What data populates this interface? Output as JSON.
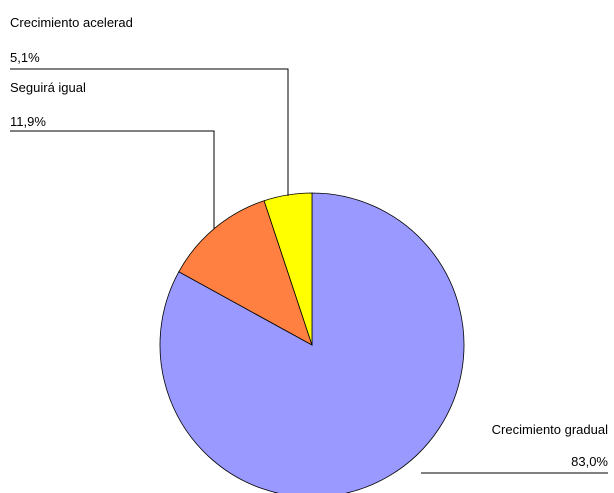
{
  "chart_data": {
    "type": "pie",
    "title": "",
    "slices": [
      {
        "label": "Crecimiento gradual",
        "value": 83.0,
        "value_label": "83,0%",
        "color": "#9999ff"
      },
      {
        "label": "Seguirá igual",
        "value": 11.9,
        "value_label": "11,9%",
        "color": "#ff8040"
      },
      {
        "label": "Crecimiento acelerad",
        "value": 5.1,
        "value_label": "5,1%",
        "color": "#ffff00"
      }
    ]
  }
}
